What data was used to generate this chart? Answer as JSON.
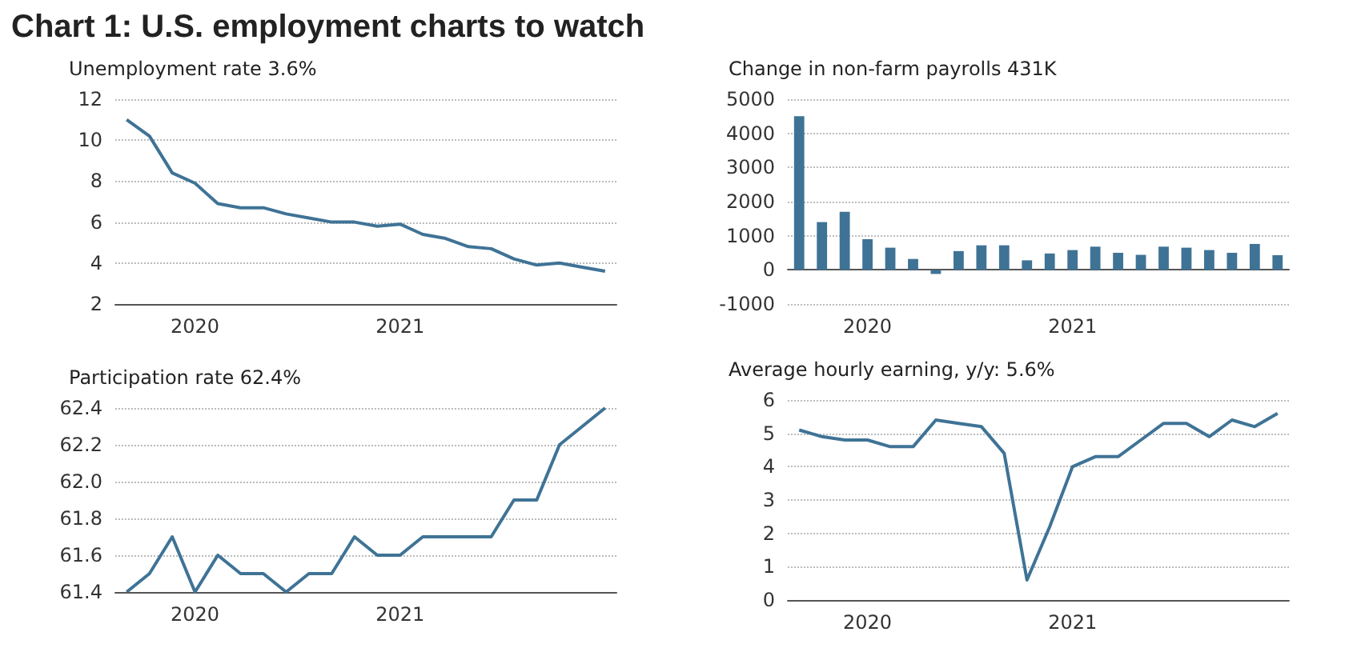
{
  "chart_data": [
    {
      "type": "line",
      "title": "Chart 1: U.S. employment charts to watch",
      "subtitle": "Unemployment rate 3.6%",
      "categories": [
        null,
        null,
        null,
        "2020",
        null,
        null,
        null,
        null,
        null,
        null,
        null,
        null,
        "2021",
        null,
        null,
        null,
        null,
        null,
        null,
        null,
        null,
        null
      ],
      "values": [
        11.0,
        10.2,
        8.4,
        7.9,
        6.9,
        6.7,
        6.7,
        6.4,
        6.2,
        6.0,
        6.0,
        5.8,
        5.9,
        5.4,
        5.2,
        4.8,
        4.7,
        4.2,
        3.9,
        4.0,
        3.8,
        3.6
      ],
      "color": "#3f7396",
      "ylim": [
        2,
        12
      ],
      "yticks": [
        2,
        4,
        6,
        8,
        10,
        12
      ],
      "grid": "y",
      "marker": "none"
    },
    {
      "type": "bar",
      "subtitle": "Change in non-farm payrolls 431K",
      "categories": [
        null,
        null,
        null,
        "2020",
        null,
        null,
        null,
        null,
        null,
        null,
        null,
        null,
        "2021",
        null,
        null,
        null,
        null,
        null,
        null,
        null,
        null,
        null
      ],
      "values": [
        4500,
        1400,
        1700,
        900,
        650,
        320,
        -120,
        550,
        720,
        720,
        280,
        480,
        580,
        680,
        500,
        440,
        680,
        650,
        580,
        500,
        760,
        430
      ],
      "color": "#3f7396",
      "ylim": [
        -1000,
        5000
      ],
      "yticks": [
        -1000,
        0,
        1000,
        2000,
        3000,
        4000,
        5000
      ],
      "grid": "y"
    },
    {
      "type": "line",
      "subtitle": "Participation rate 62.4%",
      "categories": [
        null,
        null,
        null,
        "2020",
        null,
        null,
        null,
        null,
        null,
        null,
        null,
        null,
        "2021",
        null,
        null,
        null,
        null,
        null,
        null,
        null,
        null,
        null
      ],
      "values": [
        61.4,
        61.5,
        61.7,
        61.4,
        61.6,
        61.5,
        61.5,
        61.4,
        61.5,
        61.5,
        61.7,
        61.6,
        61.6,
        61.7,
        61.7,
        61.7,
        61.7,
        61.9,
        61.9,
        62.2,
        62.3,
        62.4
      ],
      "color": "#3f7396",
      "ylim": [
        61.4,
        62.4
      ],
      "yticks": [
        61.4,
        61.6,
        61.8,
        {
          "value": 62,
          "label": "62.0"
        },
        62.2,
        62.4
      ],
      "grid": "y",
      "marker": "none"
    },
    {
      "type": "line",
      "subtitle": "Average hourly earning, y/y: 5.6%",
      "categories": [
        null,
        null,
        null,
        "2020",
        null,
        null,
        null,
        null,
        null,
        null,
        null,
        null,
        "2021",
        null,
        null,
        null,
        null,
        null,
        null,
        null,
        null,
        null
      ],
      "values": [
        5.1,
        4.9,
        4.8,
        4.8,
        4.6,
        4.6,
        5.4,
        5.3,
        5.2,
        4.4,
        0.6,
        2.2,
        4.0,
        4.3,
        4.3,
        4.8,
        5.3,
        5.3,
        4.9,
        5.4,
        5.2,
        5.6
      ],
      "color": "#3f7396",
      "ylim": [
        0,
        6
      ],
      "yticks": [
        0,
        1,
        2,
        3,
        4,
        5,
        6
      ],
      "grid": "y",
      "marker": "none"
    }
  ]
}
